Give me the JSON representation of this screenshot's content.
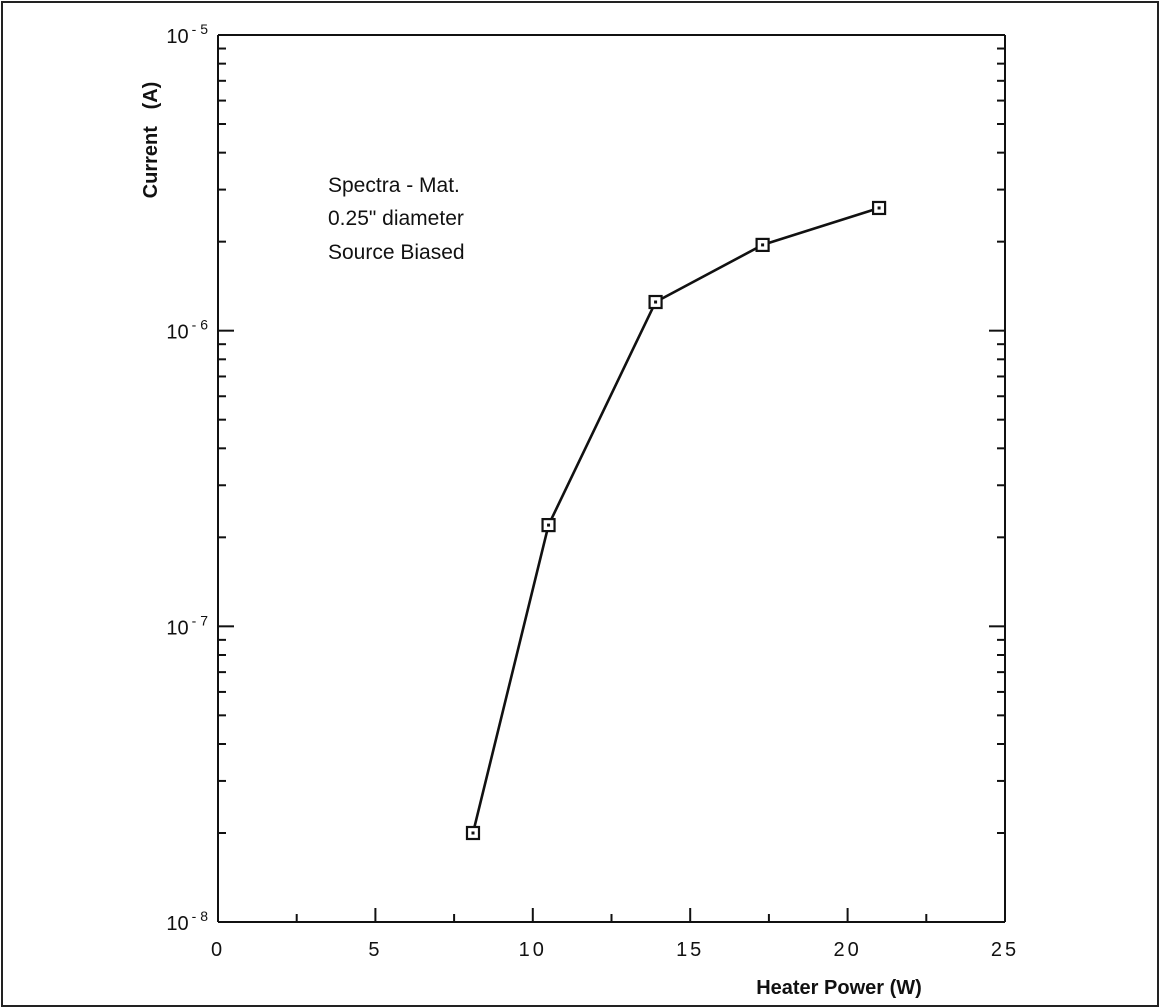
{
  "chart_data": {
    "type": "line",
    "title": "",
    "xlabel": "Heater Power (W)",
    "ylabel": "Current   (A)",
    "xlim": [
      0,
      25
    ],
    "ylim": [
      1e-08,
      1e-05
    ],
    "yscale": "log",
    "grid": false,
    "x_major_ticks": [
      0,
      5,
      10,
      15,
      20,
      25
    ],
    "x_tick_labels": [
      "0",
      "5",
      "10",
      "15",
      "20",
      "25"
    ],
    "x_minor_ticks": [
      2.5,
      7.5,
      12.5,
      17.5,
      22.5
    ],
    "y_major_ticks": [
      {
        "value": 1e-08,
        "base": "10",
        "exponent": "- 8"
      },
      {
        "value": 1e-07,
        "base": "10",
        "exponent": "- 7"
      },
      {
        "value": 1e-06,
        "base": "10",
        "exponent": "- 6"
      },
      {
        "value": 1e-05,
        "base": "10",
        "exponent": "- 5"
      }
    ],
    "annotation": [
      "Spectra - Mat.",
      "0.25\" diameter",
      "Source Biased"
    ],
    "series": [
      {
        "marker": "square-dot",
        "x": [
          8.1,
          10.5,
          13.9,
          17.3,
          21.0
        ],
        "y": [
          2e-08,
          2.2e-07,
          1.25e-06,
          1.95e-06,
          2.6e-06
        ]
      }
    ]
  }
}
